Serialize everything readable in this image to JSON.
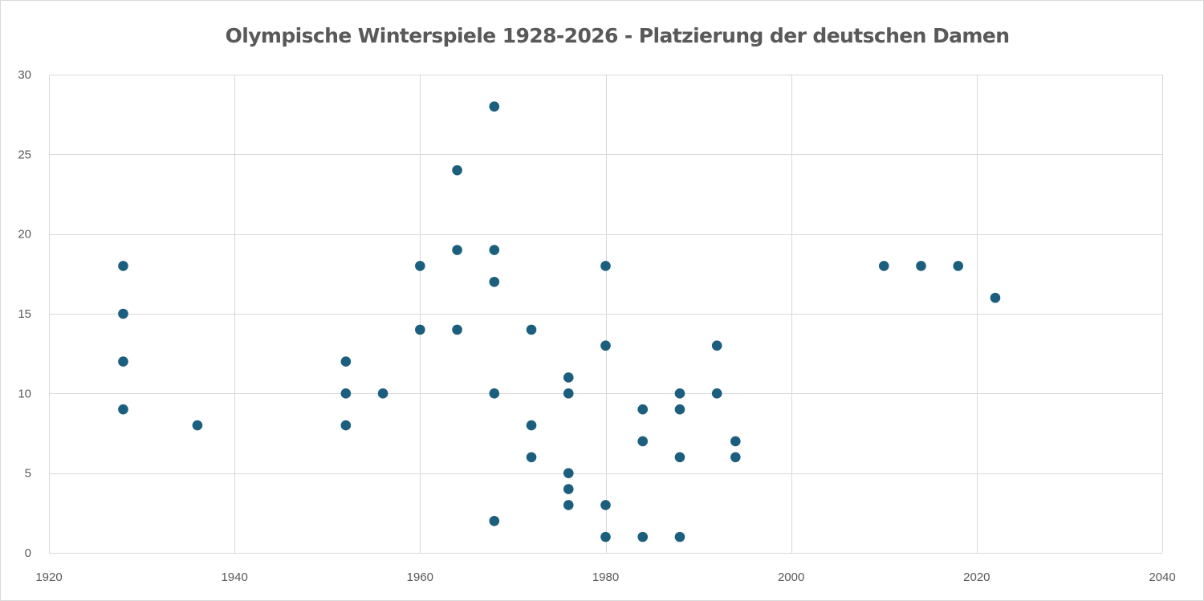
{
  "chart_data": {
    "type": "scatter",
    "title": "Olympische Winterspiele 1928-2026 - Platzierung der deutschen Damen",
    "xlabel": "",
    "ylabel": "",
    "xlim": [
      1920,
      2040
    ],
    "ylim": [
      0,
      30
    ],
    "x_ticks": [
      1920,
      1940,
      1960,
      1980,
      2000,
      2020,
      2040
    ],
    "y_ticks": [
      0,
      5,
      10,
      15,
      20,
      25,
      30
    ],
    "grid": true,
    "legend": "none",
    "marker_color": "#1b5e7e",
    "series": [
      {
        "points": [
          {
            "x": 1928,
            "y": 18
          },
          {
            "x": 1928,
            "y": 15
          },
          {
            "x": 1928,
            "y": 12
          },
          {
            "x": 1928,
            "y": 9
          },
          {
            "x": 1936,
            "y": 8
          },
          {
            "x": 1952,
            "y": 12
          },
          {
            "x": 1952,
            "y": 10
          },
          {
            "x": 1952,
            "y": 8
          },
          {
            "x": 1956,
            "y": 10
          },
          {
            "x": 1960,
            "y": 18
          },
          {
            "x": 1960,
            "y": 14
          },
          {
            "x": 1964,
            "y": 24
          },
          {
            "x": 1964,
            "y": 19
          },
          {
            "x": 1964,
            "y": 14
          },
          {
            "x": 1968,
            "y": 28
          },
          {
            "x": 1968,
            "y": 19
          },
          {
            "x": 1968,
            "y": 17
          },
          {
            "x": 1968,
            "y": 10
          },
          {
            "x": 1968,
            "y": 2
          },
          {
            "x": 1972,
            "y": 14
          },
          {
            "x": 1972,
            "y": 8
          },
          {
            "x": 1972,
            "y": 6
          },
          {
            "x": 1976,
            "y": 11
          },
          {
            "x": 1976,
            "y": 10
          },
          {
            "x": 1976,
            "y": 5
          },
          {
            "x": 1976,
            "y": 4
          },
          {
            "x": 1976,
            "y": 3
          },
          {
            "x": 1980,
            "y": 18
          },
          {
            "x": 1980,
            "y": 13
          },
          {
            "x": 1980,
            "y": 3
          },
          {
            "x": 1980,
            "y": 1
          },
          {
            "x": 1984,
            "y": 9
          },
          {
            "x": 1984,
            "y": 7
          },
          {
            "x": 1984,
            "y": 1
          },
          {
            "x": 1988,
            "y": 10
          },
          {
            "x": 1988,
            "y": 9
          },
          {
            "x": 1988,
            "y": 6
          },
          {
            "x": 1988,
            "y": 1
          },
          {
            "x": 1992,
            "y": 13
          },
          {
            "x": 1992,
            "y": 10
          },
          {
            "x": 1994,
            "y": 7
          },
          {
            "x": 1994,
            "y": 6
          },
          {
            "x": 2010,
            "y": 18
          },
          {
            "x": 2014,
            "y": 18
          },
          {
            "x": 2018,
            "y": 18
          },
          {
            "x": 2022,
            "y": 16
          }
        ]
      }
    ]
  }
}
